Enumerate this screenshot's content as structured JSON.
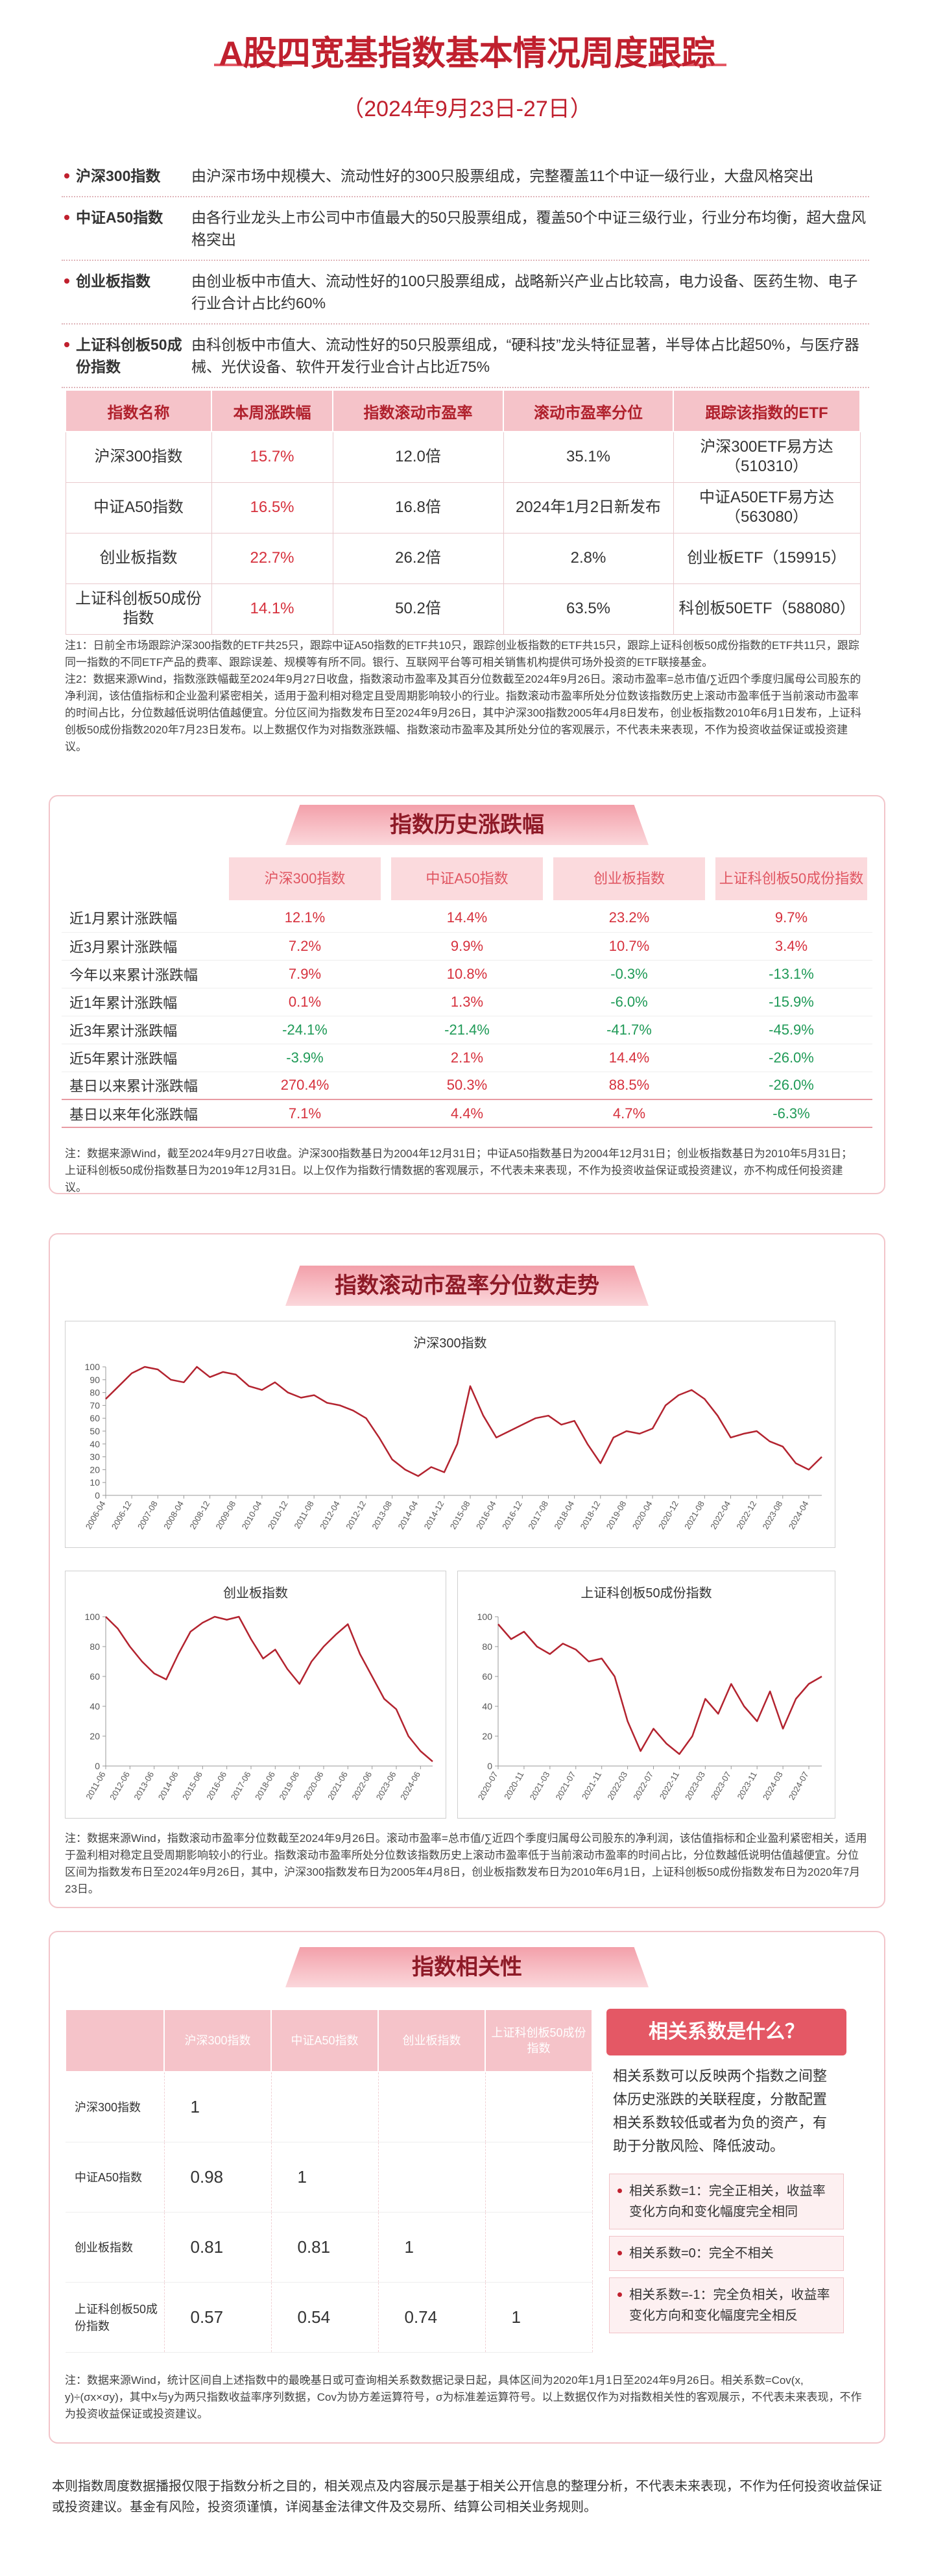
{
  "header": {
    "title": "A股四宽基指数基本情况周度跟踪",
    "subtitle": "（2024年9月23日-27日）"
  },
  "intro": [
    {
      "name": "沪深300指数",
      "desc": "由沪深市场中规模大、流动性好的300只股票组成，完整覆盖11个中证一级行业，大盘风格突出"
    },
    {
      "name": "中证A50指数",
      "desc": "由各行业龙头上市公司中市值最大的50只股票组成，覆盖50个中证三级行业，行业分布均衡，超大盘风格突出"
    },
    {
      "name": "创业板指数",
      "desc": "由创业板中市值大、流动性好的100只股票组成，战略新兴产业占比较高，电力设备、医药生物、电子行业合计占比约60%"
    },
    {
      "name": "上证科创板50成份指数",
      "desc": "由科创板中市值大、流动性好的50只股票组成，“硬科技”龙头特征显著，半导体占比超50%，与医疗器械、光伏设备、软件开发行业合计占比近75%"
    }
  ],
  "table1": {
    "headers": [
      "指数名称",
      "本周涨跌幅",
      "指数滚动市盈率",
      "滚动市盈率分位",
      "跟踪该指数的ETF"
    ],
    "rows": [
      [
        "沪深300指数",
        "15.7%",
        "12.0倍",
        "35.1%",
        "沪深300ETF易方达（510310）"
      ],
      [
        "中证A50指数",
        "16.5%",
        "16.8倍",
        "2024年1月2日新发布",
        "中证A50ETF易方达（563080）"
      ],
      [
        "创业板指数",
        "22.7%",
        "26.2倍",
        "2.8%",
        "创业板ETF（159915）"
      ],
      [
        "上证科创板50成份指数",
        "14.1%",
        "50.2倍",
        "63.5%",
        "科创板50ETF（588080）"
      ]
    ]
  },
  "notes1": [
    "注1：日前全市场跟踪沪深300指数的ETF共25只，跟踪中证A50指数的ETF共10只，跟踪创业板指数的ETF共15只，跟踪上证科创板50成份指数的ETF共11只，跟踪同一指数的不同ETF产品的费率、跟踪误差、规模等有所不同。银行、互联网平台等可相关销售机构提供可场外投资的ETF联接基金。",
    "注2：数据来源Wind，指数涨跌幅截至2024年9月27日收盘，指数滚动市盈率及其百分位数截至2024年9月26日。滚动市盈率=总市值/∑近四个季度归属母公司股东的净利润，该估值指标和企业盈利紧密相关，适用于盈利相对稳定且受周期影响较小的行业。指数滚动市盈率所处分位数该指数历史上滚动市盈率低于当前滚动市盈率的时间占比，分位数越低说明估值越便宜。分位区间为指数发布日至2024年9月26日，其中沪深300指数2005年4月8日发布，创业板指数2010年6月1日发布，上证科创板50成份指数2020年7月23日发布。以上数据仅作为对指数涨跌幅、指数滚动市盈率及其所处分位的客观展示，不代表未来表现，不作为投资收益保证或投资建议。"
  ],
  "history": {
    "title": "指数历史涨跌幅",
    "headers": [
      "沪深300指数",
      "中证A50指数",
      "创业板指数",
      "上证科创板50成份指数"
    ],
    "rows": [
      [
        "近1月累计涨跌幅",
        "12.1%",
        "14.4%",
        "23.2%",
        "9.7%"
      ],
      [
        "近3月累计涨跌幅",
        "7.2%",
        "9.9%",
        "10.7%",
        "3.4%"
      ],
      [
        "今年以来累计涨跌幅",
        "7.9%",
        "10.8%",
        "-0.3%",
        "-13.1%"
      ],
      [
        "近1年累计涨跌幅",
        "0.1%",
        "1.3%",
        "-6.0%",
        "-15.9%"
      ],
      [
        "近3年累计涨跌幅",
        "-24.1%",
        "-21.4%",
        "-41.7%",
        "-45.9%"
      ],
      [
        "近5年累计涨跌幅",
        "-3.9%",
        "2.1%",
        "14.4%",
        "-26.0%"
      ],
      [
        "基日以来累计涨跌幅",
        "270.4%",
        "50.3%",
        "88.5%",
        "-26.0%"
      ],
      [
        "基日以来年化涨跌幅",
        "7.1%",
        "4.4%",
        "4.7%",
        "-6.3%"
      ]
    ],
    "note": "注：数据来源Wind，截至2024年9月27日收盘。沪深300指数基日为2004年12月31日；中证A50指数基日为2004年12月31日；创业板指数基日为2010年5月31日；上证科创板50成份指数基日为2019年12月31日。以上仅作为指数行情数据的客观展示，不代表未来表现，不作为投资收益保证或投资建议，亦不构成任何投资建议。"
  },
  "pe_section": {
    "title": "指数滚动市盈率分位数走势",
    "note": "注：数据来源Wind，指数滚动市盈率分位数截至2024年9月26日。滚动市盈率=总市值/∑近四个季度归属母公司股东的净利润，该估值指标和企业盈利紧密相关，适用于盈利相对稳定且受周期影响较小的行业。指数滚动市盈率所处分位数该指数历史上滚动市盈率低于当前滚动市盈率的时间占比，分位数越低说明估值越便宜。分位区间为指数发布日至2024年9月26日，其中，沪深300指数发布日为2005年4月8日，创业板指数发布日为2010年6月1日，上证科创板50成份指数发布日为2020年7月23日。"
  },
  "chart_data": [
    {
      "type": "line",
      "title": "沪深300指数",
      "color": "#b3232f",
      "ylim": [
        0,
        100
      ],
      "yticks": [
        0,
        10,
        20,
        30,
        40,
        50,
        60,
        70,
        80,
        90,
        100
      ],
      "categories": [
        "2006-04",
        null,
        "2006-12",
        null,
        "2007-08",
        null,
        "2008-04",
        null,
        "2008-12",
        null,
        "2009-08",
        null,
        "2010-04",
        null,
        "2010-12",
        null,
        "2011-08",
        null,
        "2012-04",
        null,
        "2012-12",
        null,
        "2013-08",
        null,
        "2014-04",
        null,
        "2014-12",
        null,
        "2015-08",
        null,
        "2016-04",
        null,
        "2016-12",
        null,
        "2017-08",
        null,
        "2018-04",
        null,
        "2018-12",
        null,
        "2019-08",
        null,
        "2020-04",
        null,
        "2020-12",
        null,
        "2021-08",
        null,
        "2022-04",
        null,
        "2022-12",
        null,
        "2023-08",
        null,
        "2024-04",
        null
      ],
      "values": [
        75,
        85,
        95,
        100,
        98,
        90,
        88,
        100,
        92,
        96,
        94,
        85,
        82,
        88,
        80,
        76,
        78,
        72,
        70,
        66,
        60,
        45,
        28,
        20,
        15,
        22,
        18,
        40,
        85,
        62,
        45,
        50,
        55,
        60,
        62,
        55,
        58,
        40,
        25,
        45,
        50,
        48,
        52,
        70,
        78,
        82,
        75,
        62,
        45,
        48,
        50,
        42,
        38,
        25,
        20,
        30
      ]
    },
    {
      "type": "line",
      "title": "创业板指数",
      "color": "#b3232f",
      "ylim": [
        0,
        100
      ],
      "yticks": [
        0,
        20,
        40,
        60,
        80,
        100
      ],
      "categories": [
        "2011-06",
        null,
        "2012-06",
        null,
        "2013-06",
        null,
        "2014-06",
        null,
        "2015-06",
        null,
        "2016-06",
        null,
        "2017-06",
        null,
        "2018-06",
        null,
        "2019-06",
        null,
        "2020-06",
        null,
        "2021-06",
        null,
        "2022-06",
        null,
        "2023-06",
        null,
        "2024-06",
        null
      ],
      "values": [
        100,
        92,
        80,
        70,
        62,
        58,
        75,
        90,
        96,
        100,
        98,
        100,
        85,
        72,
        78,
        65,
        55,
        70,
        80,
        88,
        95,
        75,
        60,
        45,
        38,
        20,
        10,
        3
      ]
    },
    {
      "type": "line",
      "title": "上证科创板50成份指数",
      "color": "#b3232f",
      "ylim": [
        0,
        100
      ],
      "yticks": [
        0,
        20,
        40,
        60,
        80,
        100
      ],
      "categories": [
        "2020-07",
        null,
        "2020-11",
        null,
        "2021-03",
        null,
        "2021-07",
        null,
        "2021-11",
        null,
        "2022-03",
        null,
        "2022-07",
        null,
        "2022-11",
        null,
        "2023-03",
        null,
        "2023-07",
        null,
        "2023-11",
        null,
        "2024-03",
        null,
        "2024-07",
        null
      ],
      "values": [
        95,
        85,
        90,
        80,
        75,
        82,
        78,
        70,
        72,
        60,
        30,
        10,
        25,
        15,
        8,
        20,
        45,
        35,
        55,
        40,
        30,
        50,
        25,
        45,
        55,
        60
      ]
    }
  ],
  "correlation": {
    "title": "指数相关性",
    "headers": [
      "沪深300指数",
      "中证A50指数",
      "创业板指数",
      "上证科创板50成份指数"
    ],
    "rows": [
      {
        "name": "沪深300指数",
        "values": [
          "1"
        ]
      },
      {
        "name": "中证A50指数",
        "values": [
          "0.98",
          "1"
        ]
      },
      {
        "name": "创业板指数",
        "values": [
          "0.81",
          "0.81",
          "1"
        ]
      },
      {
        "name": "上证科创板50成份指数",
        "values": [
          "0.57",
          "0.54",
          "0.74",
          "1"
        ]
      }
    ],
    "panel": {
      "title": "相关系数是什么？",
      "text": "相关系数可以反映两个指数之间整体历史涨跌的关联程度，分散配置相关系数较低或者为负的资产，有助于分散风险、降低波动。",
      "bullets": [
        "相关系数=1：完全正相关，收益率变化方向和变化幅度完全相同",
        "相关系数=0：完全不相关",
        "相关系数=-1：完全负相关，收益率变化方向和变化幅度完全相反"
      ]
    },
    "note": "注：数据来源Wind，统计区间自上述指数中的最晚基日或可查询相关系数数据记录日起，具体区间为2020年1月1日至2024年9月26日。相关系数=Cov(x, y)÷(σx×σy)，其中x与y为两只指数收益率序列数据，Cov为协方差运算符号，σ为标准差运算符号。以上数据仅作为对指数相关性的客观展示，不代表未来表现，不作为投资收益保证或投资建议。"
  },
  "footer": "本则指数周度数据播报仅限于指数分析之目的，相关观点及内容展示是基于相关公开信息的整理分析，不代表未来表现，不作为任何投资收益保证或投资建议。基金有风险，投资须谨慎，详阅基金法律文件及交易所、结算公司相关业务规则。"
}
